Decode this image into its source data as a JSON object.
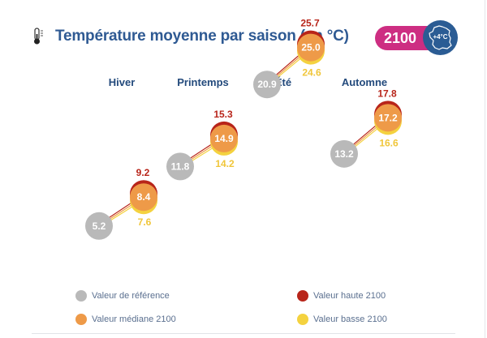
{
  "header": {
    "title": "Température moyenne par saison (en °C)",
    "icon": "thermometer-icon",
    "badge": {
      "year": "2100",
      "warming": "+4°C",
      "icon": "france-map-icon",
      "year_color": "#cd2e82",
      "map_color": "#2b5c94"
    }
  },
  "colors": {
    "reference": "#b9b9b9",
    "high": "#b8251a",
    "median": "#ee9a48",
    "low": "#f4d23f",
    "title": "#2f5a93"
  },
  "chart_data": {
    "type": "scatter",
    "title": "Température moyenne par saison (en °C)",
    "categories": [
      "Hiver",
      "Printemps",
      "Été",
      "Automne"
    ],
    "series": [
      {
        "name": "Valeur de référence",
        "key": "reference",
        "values": [
          5.2,
          11.8,
          20.9,
          13.2
        ]
      },
      {
        "name": "Valeur médiane 2100",
        "key": "median",
        "values": [
          8.4,
          14.9,
          25.0,
          17.2
        ]
      },
      {
        "name": "Valeur haute 2100",
        "key": "high",
        "values": [
          9.2,
          15.3,
          25.7,
          17.8
        ]
      },
      {
        "name": "Valeur basse 2100",
        "key": "low",
        "values": [
          7.6,
          14.2,
          24.6,
          16.6
        ]
      }
    ],
    "value_labels": {
      "reference": [
        "5.2",
        "11.8",
        "20.9",
        "13.2"
      ],
      "median": [
        "8.4",
        "14.9",
        "25.0",
        "17.2"
      ],
      "high": [
        "9.2",
        "15.3",
        "25.7",
        "17.8"
      ],
      "low": [
        "7.6",
        "14.2",
        "24.6",
        "16.6"
      ]
    },
    "xlabel": "",
    "ylabel": "",
    "ylim": [
      2,
      28
    ],
    "grid": false,
    "legend_position": "bottom"
  },
  "legend": [
    {
      "label": "Valeur de référence",
      "key": "reference"
    },
    {
      "label": "Valeur haute 2100",
      "key": "high"
    },
    {
      "label": "Valeur médiane 2100",
      "key": "median"
    },
    {
      "label": "Valeur basse 2100",
      "key": "low"
    }
  ]
}
